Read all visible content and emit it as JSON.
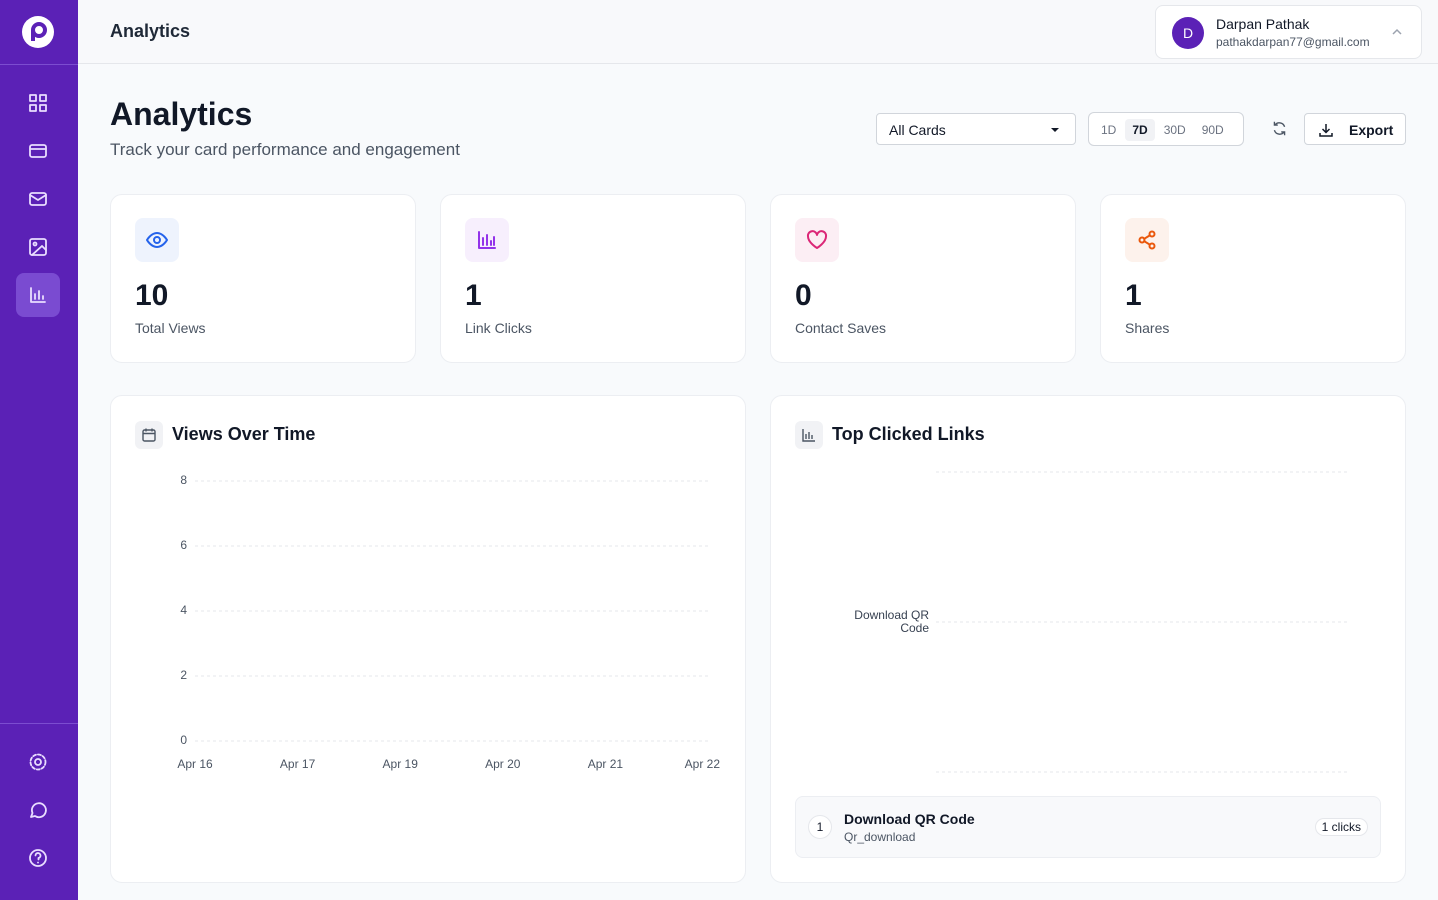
{
  "header": {
    "title": "Analytics",
    "user": {
      "initial": "D",
      "name": "Darpan Pathak",
      "email": "pathakdarpan77@gmail.com"
    }
  },
  "page": {
    "title": "Analytics",
    "subtitle": "Track your card performance and engagement",
    "filter": "All Cards",
    "ranges": [
      {
        "label": "1D"
      },
      {
        "label": "7D",
        "active": true
      },
      {
        "label": "30D"
      },
      {
        "label": "90D"
      }
    ],
    "export": "Export"
  },
  "stats": [
    {
      "value": 10,
      "label": "Total Views",
      "color": "#2563eb"
    },
    {
      "value": 1,
      "label": "Link Clicks",
      "color": "#9333ea"
    },
    {
      "value": 0,
      "label": "Contact Saves",
      "color": "#db2777"
    },
    {
      "value": 1,
      "label": "Shares",
      "color": "#ea580c"
    }
  ],
  "views_chart": {
    "type": "line",
    "title": "Views Over Time",
    "categories": [
      "Apr 16",
      "Apr 17",
      "Apr 19",
      "Apr 20",
      "Apr 21",
      "Apr 22"
    ],
    "ylim": [
      0,
      8
    ],
    "yticks": [
      0,
      2,
      4,
      6,
      8
    ],
    "grid": true
  },
  "links_chart": {
    "type": "bar",
    "orientation": "horizontal",
    "title": "Top Clicked Links",
    "categories": [
      "Download QR Code"
    ],
    "grid": true
  },
  "links_list": [
    {
      "rank": 1,
      "name": "Download QR Code",
      "slug": "Qr_download",
      "clicks": "1 clicks"
    }
  ]
}
